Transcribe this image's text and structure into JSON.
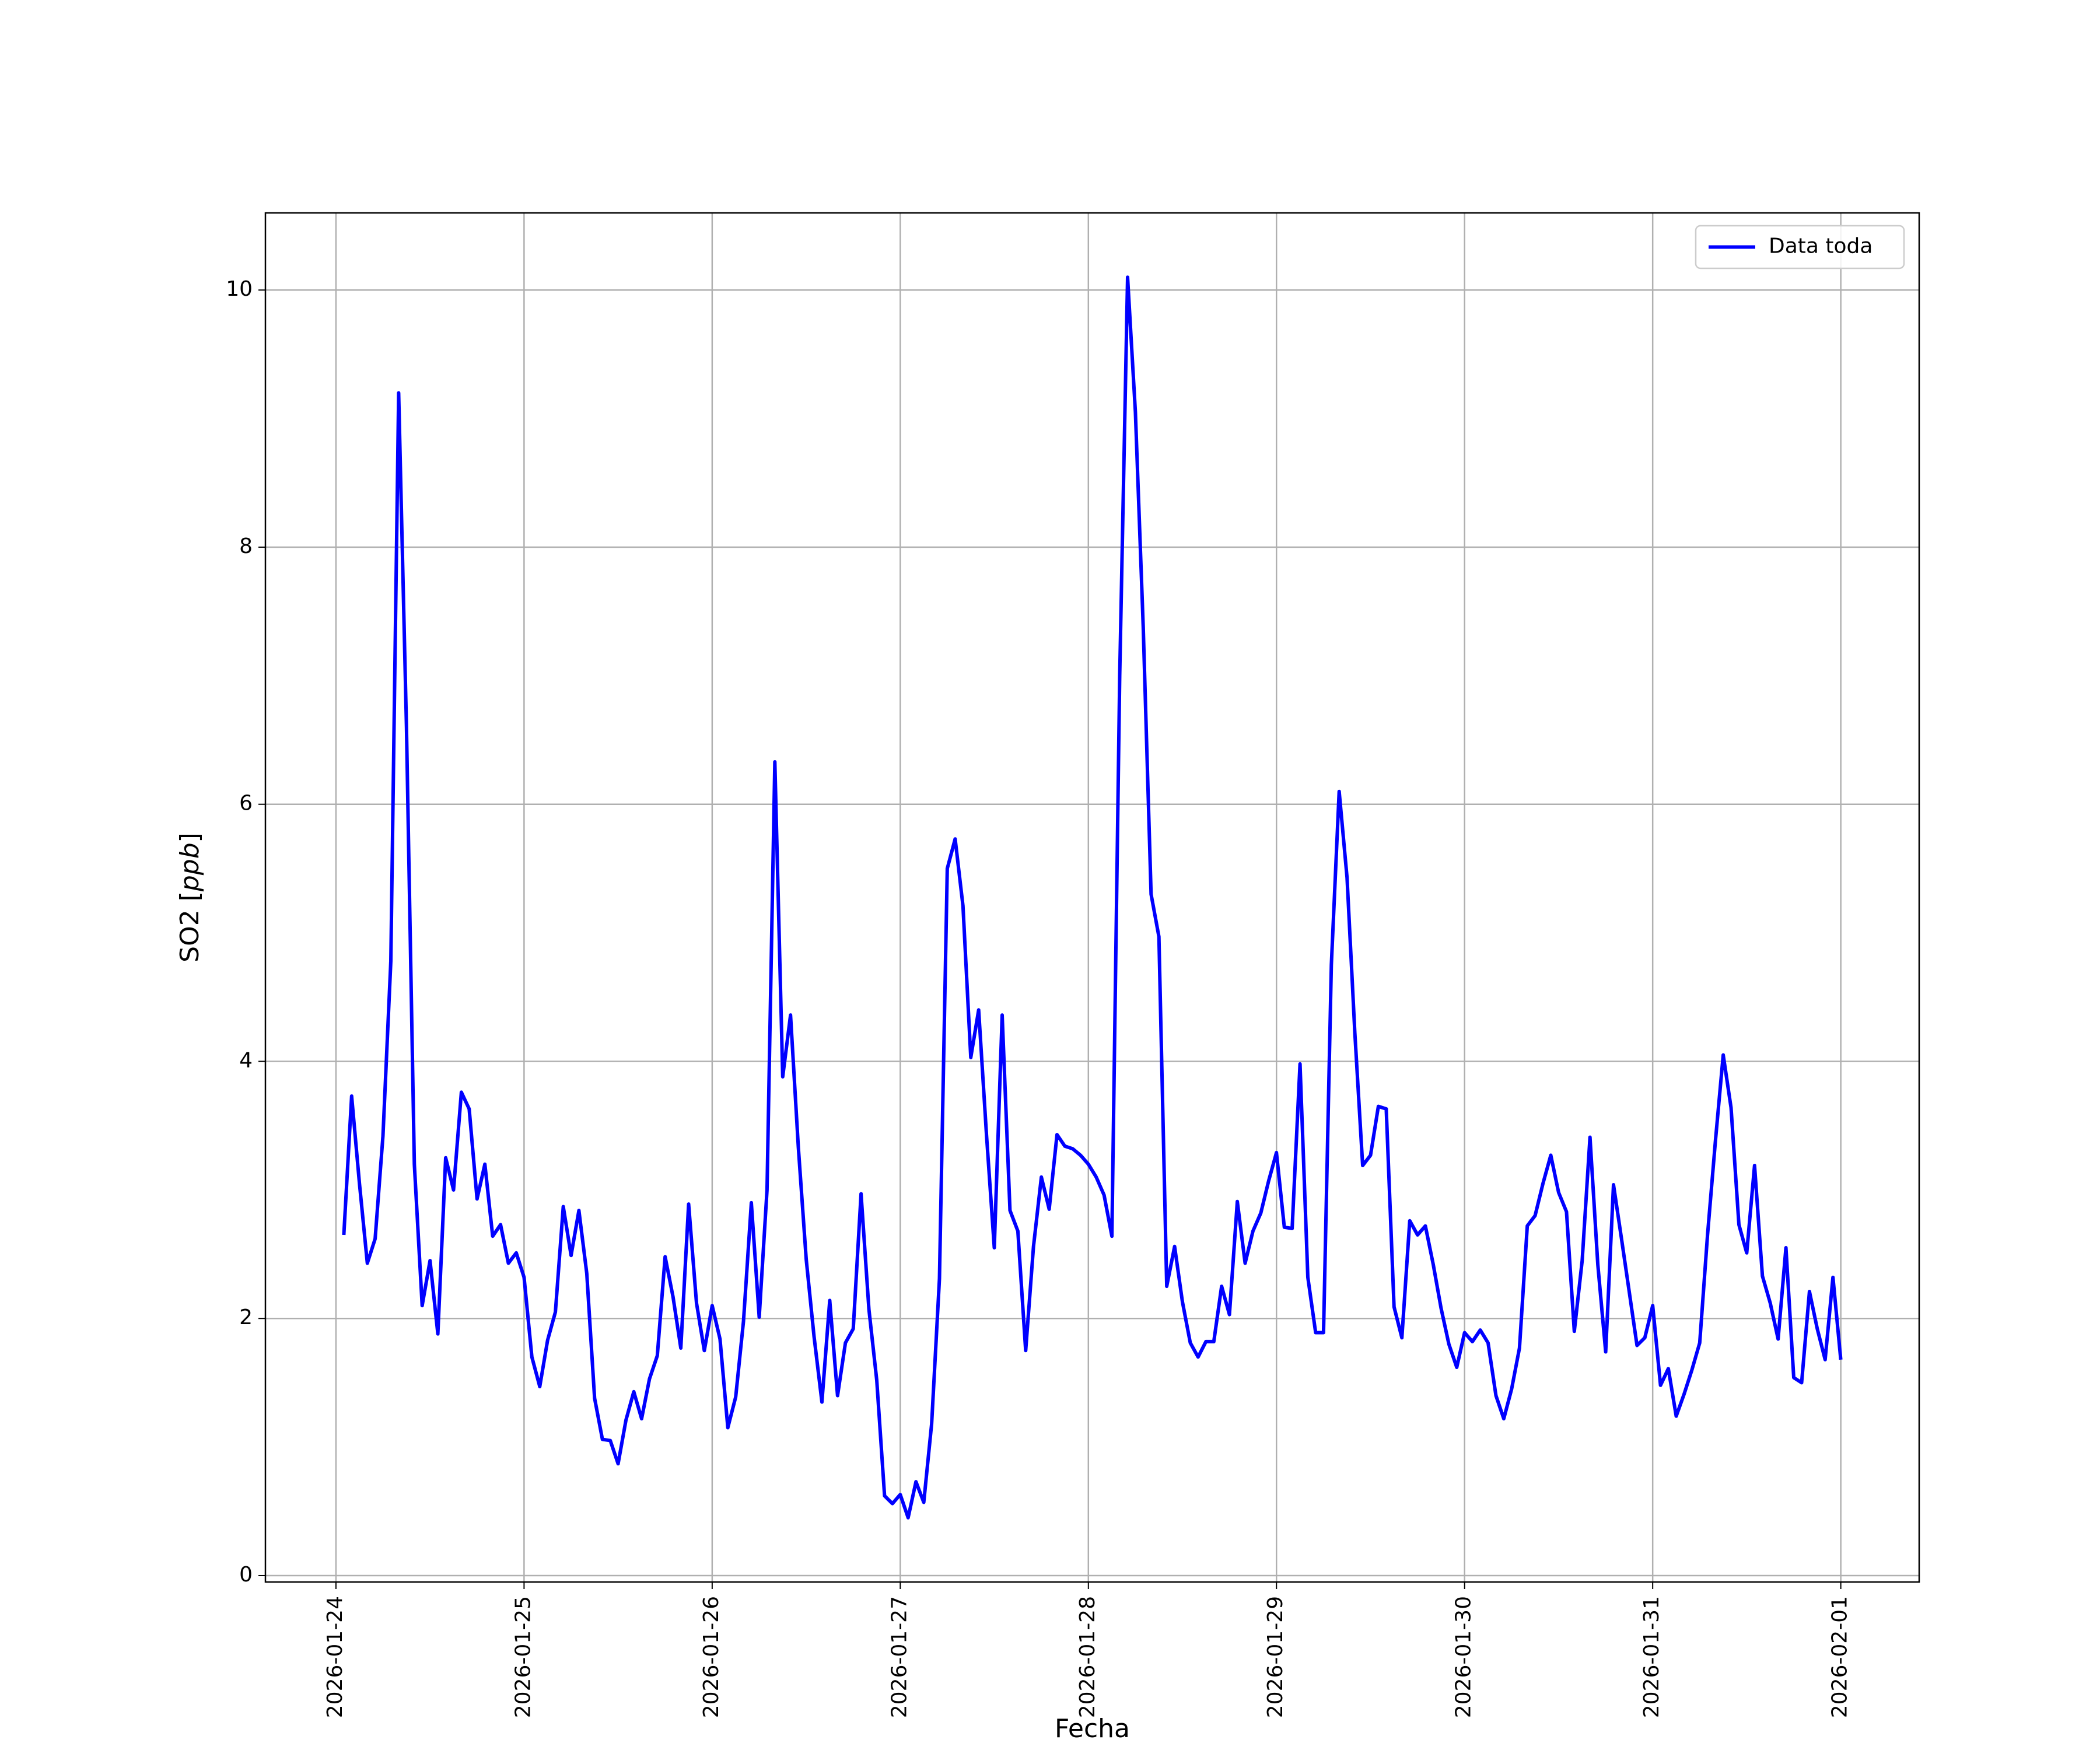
{
  "chart_data": {
    "type": "line",
    "xlabel": "Fecha",
    "ylabel": "SO2 [ppb]",
    "ylabel_main": "SO2 [",
    "ylabel_unit": "ppb",
    "ylabel_close": "]",
    "xlim": [
      "2026-01-23T15:00",
      "2026-02-01T10:00"
    ],
    "ylim": [
      -0.05,
      10.6
    ],
    "grid": true,
    "legend_position": "top-right",
    "line_color": "#0000ff",
    "x_ticks": [
      "2026-01-24",
      "2026-01-25",
      "2026-01-26",
      "2026-01-27",
      "2026-01-28",
      "2026-01-29",
      "2026-01-30",
      "2026-01-31",
      "2026-02-01"
    ],
    "y_ticks": [
      0,
      2,
      4,
      6,
      8,
      10
    ],
    "series": [
      {
        "name": "Data toda",
        "x": [
          "2026-01-24T01:00",
          "2026-01-24T02:00",
          "2026-01-24T03:00",
          "2026-01-24T04:00",
          "2026-01-24T05:00",
          "2026-01-24T06:00",
          "2026-01-24T07:00",
          "2026-01-24T08:00",
          "2026-01-24T09:00",
          "2026-01-24T10:00",
          "2026-01-24T11:00",
          "2026-01-24T12:00",
          "2026-01-24T13:00",
          "2026-01-24T14:00",
          "2026-01-24T15:00",
          "2026-01-24T16:00",
          "2026-01-24T17:00",
          "2026-01-24T18:00",
          "2026-01-24T19:00",
          "2026-01-24T20:00",
          "2026-01-24T21:00",
          "2026-01-24T22:00",
          "2026-01-24T23:00",
          "2026-01-25T00:00",
          "2026-01-25T01:00",
          "2026-01-25T02:00",
          "2026-01-25T03:00",
          "2026-01-25T04:00",
          "2026-01-25T05:00",
          "2026-01-25T06:00",
          "2026-01-25T07:00",
          "2026-01-25T08:00",
          "2026-01-25T09:00",
          "2026-01-25T10:00",
          "2026-01-25T11:00",
          "2026-01-25T12:00",
          "2026-01-25T13:00",
          "2026-01-25T14:00",
          "2026-01-25T15:00",
          "2026-01-25T16:00",
          "2026-01-25T17:00",
          "2026-01-25T18:00",
          "2026-01-25T19:00",
          "2026-01-25T20:00",
          "2026-01-25T21:00",
          "2026-01-25T22:00",
          "2026-01-25T23:00",
          "2026-01-26T00:00",
          "2026-01-26T01:00",
          "2026-01-26T02:00",
          "2026-01-26T03:00",
          "2026-01-26T04:00",
          "2026-01-26T05:00",
          "2026-01-26T06:00",
          "2026-01-26T07:00",
          "2026-01-26T08:00",
          "2026-01-26T09:00",
          "2026-01-26T10:00",
          "2026-01-26T11:00",
          "2026-01-26T12:00",
          "2026-01-26T13:00",
          "2026-01-26T14:00",
          "2026-01-26T15:00",
          "2026-01-26T16:00",
          "2026-01-26T17:00",
          "2026-01-26T18:00",
          "2026-01-26T19:00",
          "2026-01-26T20:00",
          "2026-01-26T21:00",
          "2026-01-26T22:00",
          "2026-01-26T23:00",
          "2026-01-27T00:00",
          "2026-01-27T01:00",
          "2026-01-27T02:00",
          "2026-01-27T03:00",
          "2026-01-27T04:00",
          "2026-01-27T05:00",
          "2026-01-27T06:00",
          "2026-01-27T07:00",
          "2026-01-27T08:00",
          "2026-01-27T09:00",
          "2026-01-27T10:00",
          "2026-01-27T11:00",
          "2026-01-27T12:00",
          "2026-01-27T13:00",
          "2026-01-27T14:00",
          "2026-01-27T15:00",
          "2026-01-27T16:00",
          "2026-01-27T17:00",
          "2026-01-27T18:00",
          "2026-01-27T19:00",
          "2026-01-27T20:00",
          "2026-01-27T21:00",
          "2026-01-27T22:00",
          "2026-01-27T23:00",
          "2026-01-28T00:00",
          "2026-01-28T01:00",
          "2026-01-28T02:00",
          "2026-01-28T03:00",
          "2026-01-28T04:00",
          "2026-01-28T05:00",
          "2026-01-28T06:00",
          "2026-01-28T07:00",
          "2026-01-28T08:00",
          "2026-01-28T09:00",
          "2026-01-28T10:00",
          "2026-01-28T11:00",
          "2026-01-28T12:00",
          "2026-01-28T13:00",
          "2026-01-28T14:00",
          "2026-01-28T15:00",
          "2026-01-28T16:00",
          "2026-01-28T17:00",
          "2026-01-28T18:00",
          "2026-01-28T19:00",
          "2026-01-28T20:00",
          "2026-01-28T21:00",
          "2026-01-28T22:00",
          "2026-01-28T23:00",
          "2026-01-29T00:00",
          "2026-01-29T01:00",
          "2026-01-29T02:00",
          "2026-01-29T03:00",
          "2026-01-29T04:00",
          "2026-01-29T05:00",
          "2026-01-29T06:00",
          "2026-01-29T07:00",
          "2026-01-29T08:00",
          "2026-01-29T09:00",
          "2026-01-29T10:00",
          "2026-01-29T11:00",
          "2026-01-29T12:00",
          "2026-01-29T13:00",
          "2026-01-29T14:00",
          "2026-01-29T15:00",
          "2026-01-29T16:00",
          "2026-01-29T17:00",
          "2026-01-29T18:00",
          "2026-01-29T19:00",
          "2026-01-29T20:00",
          "2026-01-29T21:00",
          "2026-01-29T22:00",
          "2026-01-29T23:00",
          "2026-01-30T00:00",
          "2026-01-30T01:00",
          "2026-01-30T02:00",
          "2026-01-30T03:00",
          "2026-01-30T04:00",
          "2026-01-30T05:00",
          "2026-01-30T06:00",
          "2026-01-30T07:00",
          "2026-01-30T08:00",
          "2026-01-30T09:00",
          "2026-01-30T10:00",
          "2026-01-30T11:00",
          "2026-01-30T12:00",
          "2026-01-30T13:00",
          "2026-01-30T14:00",
          "2026-01-30T15:00",
          "2026-01-30T16:00",
          "2026-01-30T17:00",
          "2026-01-30T18:00",
          "2026-01-30T19:00",
          "2026-01-30T20:00",
          "2026-01-30T21:00",
          "2026-01-30T22:00",
          "2026-01-30T23:00",
          "2026-01-31T00:00",
          "2026-01-31T01:00",
          "2026-01-31T02:00",
          "2026-01-31T03:00",
          "2026-01-31T04:00",
          "2026-01-31T05:00",
          "2026-01-31T06:00",
          "2026-01-31T07:00",
          "2026-01-31T08:00",
          "2026-01-31T09:00",
          "2026-01-31T10:00",
          "2026-01-31T11:00",
          "2026-01-31T12:00",
          "2026-01-31T13:00",
          "2026-01-31T14:00",
          "2026-01-31T15:00",
          "2026-01-31T16:00",
          "2026-01-31T17:00",
          "2026-01-31T18:00",
          "2026-01-31T19:00",
          "2026-01-31T20:00",
          "2026-01-31T21:00",
          "2026-01-31T22:00",
          "2026-01-31T23:00",
          "2026-02-01T00:00"
        ],
        "y": [
          2.65,
          3.73,
          3.05,
          2.43,
          2.62,
          3.42,
          4.78,
          9.2,
          6.6,
          3.2,
          2.1,
          2.45,
          1.88,
          3.25,
          3.0,
          3.76,
          3.63,
          2.93,
          3.2,
          2.64,
          2.73,
          2.43,
          2.51,
          2.32,
          1.7,
          1.47,
          1.83,
          2.05,
          2.87,
          2.49,
          2.84,
          2.35,
          1.38,
          1.06,
          1.05,
          0.87,
          1.21,
          1.43,
          1.22,
          1.53,
          1.71,
          2.48,
          2.17,
          1.77,
          2.89,
          2.12,
          1.75,
          2.1,
          1.84,
          1.15,
          1.39,
          1.98,
          2.9,
          2.01,
          3.0,
          6.33,
          3.88,
          4.36,
          3.33,
          2.46,
          1.86,
          1.35,
          2.14,
          1.4,
          1.81,
          1.92,
          2.97,
          2.07,
          1.52,
          0.62,
          0.56,
          0.63,
          0.45,
          0.73,
          0.57,
          1.18,
          2.31,
          5.5,
          5.73,
          5.21,
          4.03,
          4.4,
          3.43,
          2.55,
          4.36,
          2.84,
          2.68,
          1.75,
          2.56,
          3.1,
          2.85,
          3.43,
          3.34,
          3.32,
          3.27,
          3.2,
          3.1,
          2.96,
          2.64,
          7.0,
          10.1,
          9.05,
          7.38,
          5.3,
          4.97,
          2.25,
          2.56,
          2.13,
          1.81,
          1.7,
          1.82,
          1.82,
          2.25,
          2.03,
          2.91,
          2.43,
          2.68,
          2.82,
          3.07,
          3.29,
          2.71,
          2.7,
          3.98,
          2.32,
          1.89,
          1.89,
          4.75,
          6.1,
          5.43,
          4.22,
          3.19,
          3.27,
          3.65,
          3.63,
          2.09,
          1.85,
          2.76,
          2.65,
          2.72,
          2.42,
          2.08,
          1.8,
          1.62,
          1.89,
          1.82,
          1.91,
          1.81,
          1.4,
          1.22,
          1.45,
          1.77,
          2.72,
          2.8,
          3.05,
          3.27,
          2.98,
          2.83,
          1.9,
          2.45,
          3.41,
          2.42,
          1.74,
          3.04,
          2.63,
          2.21,
          1.79,
          1.85,
          2.1,
          1.48,
          1.61,
          1.24,
          1.41,
          1.6,
          1.81,
          2.65,
          3.38,
          4.05,
          3.64,
          2.73,
          2.51,
          3.19,
          2.33,
          2.12,
          1.84,
          2.55,
          1.54,
          1.5,
          2.21,
          1.92,
          1.68,
          2.32,
          1.68
        ]
      }
    ]
  }
}
